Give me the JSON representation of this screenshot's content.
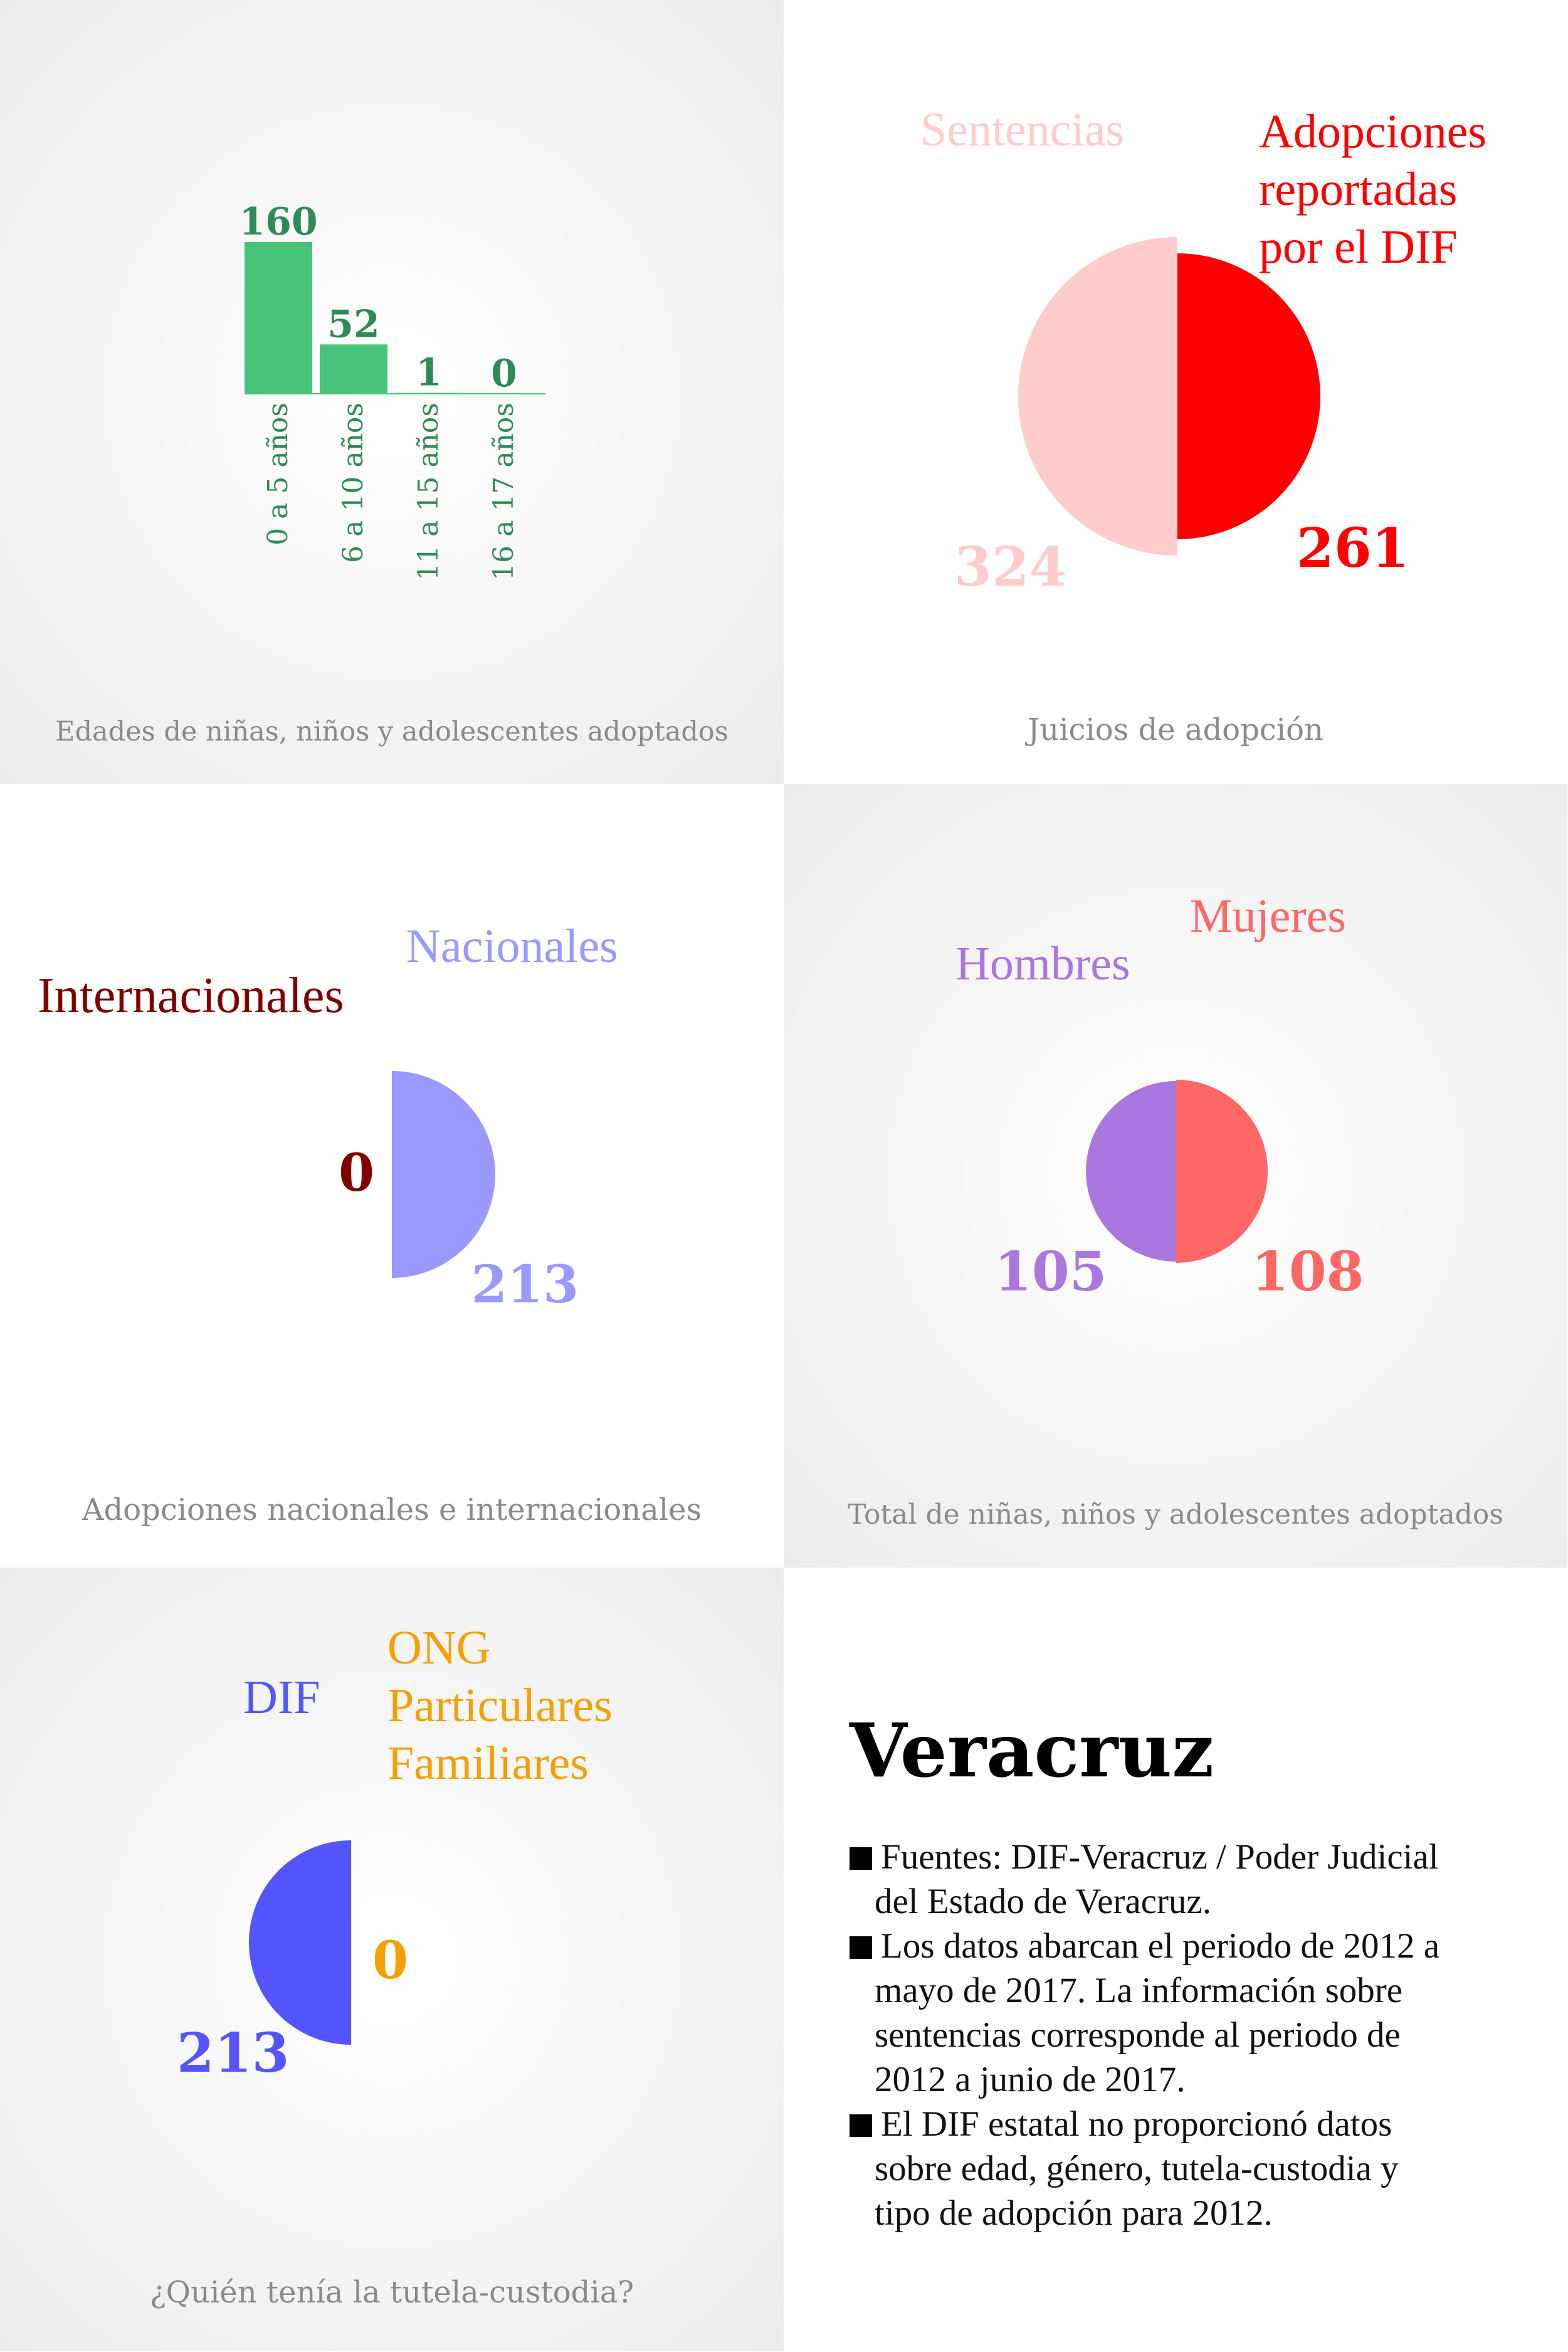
{
  "colors": {
    "green": "#47c47a",
    "green_text": "#2e8b57",
    "sentencias": "#ffcccc",
    "dif_red": "#ff0000",
    "nacionales": "#9999ff",
    "internacionales": "#800000",
    "hombres": "#aa77e0",
    "mujeres": "#ff6666",
    "dif_blue": "#5555ff",
    "ong": "#f5a000"
  },
  "chart_data": [
    {
      "type": "bar",
      "caption": "Edades de niñas, niños y adolescentes adoptados",
      "categories": [
        "0 a 5 años",
        "6 a 10 años",
        "11 a 15 años",
        "16 a 17 años"
      ],
      "values": [
        160,
        52,
        1,
        0
      ],
      "value_labels": [
        "160",
        "52",
        "1",
        "0"
      ]
    },
    {
      "type": "pie",
      "caption": "Juicios de adopción",
      "slices": [
        {
          "label": "Sentencias",
          "value": 324,
          "value_label": "324"
        },
        {
          "label": "Adopciones reportadas por el DIF",
          "label_lines": [
            "Adopciones",
            "reportadas",
            "por el DIF"
          ],
          "value": 261,
          "value_label": "261"
        }
      ]
    },
    {
      "type": "pie",
      "caption": "Adopciones nacionales e internacionales",
      "slices": [
        {
          "label": "Internacionales",
          "value": 0,
          "value_label": "0"
        },
        {
          "label": "Nacionales",
          "value": 213,
          "value_label": "213"
        }
      ]
    },
    {
      "type": "pie",
      "caption": "Total de niñas, niños y adolescentes adoptados",
      "slices": [
        {
          "label": "Hombres",
          "value": 105,
          "value_label": "105"
        },
        {
          "label": "Mujeres",
          "value": 108,
          "value_label": "108"
        }
      ]
    },
    {
      "type": "pie",
      "caption": "¿Quién tenía la tutela-custodia?",
      "slices": [
        {
          "label": "DIF",
          "value": 213,
          "value_label": "213"
        },
        {
          "label": "ONG Particulares Familiares",
          "label_lines": [
            "ONG",
            "Particulares",
            "Familiares"
          ],
          "value": 0,
          "value_label": "0"
        }
      ]
    }
  ],
  "info": {
    "title": "Veracruz",
    "notes": [
      [
        "Fuentes: DIF-Veracruz / Poder Judicial",
        "del Estado de Veracruz."
      ],
      [
        "Los datos abarcan el periodo de 2012 a",
        "mayo de 2017. La información sobre",
        "sentencias corresponde al periodo de",
        "2012 a junio de 2017."
      ],
      [
        "El DIF estatal no proporcionó datos",
        "sobre edad, género, tutela-custodia y",
        "tipo de adopción para 2012."
      ]
    ]
  }
}
